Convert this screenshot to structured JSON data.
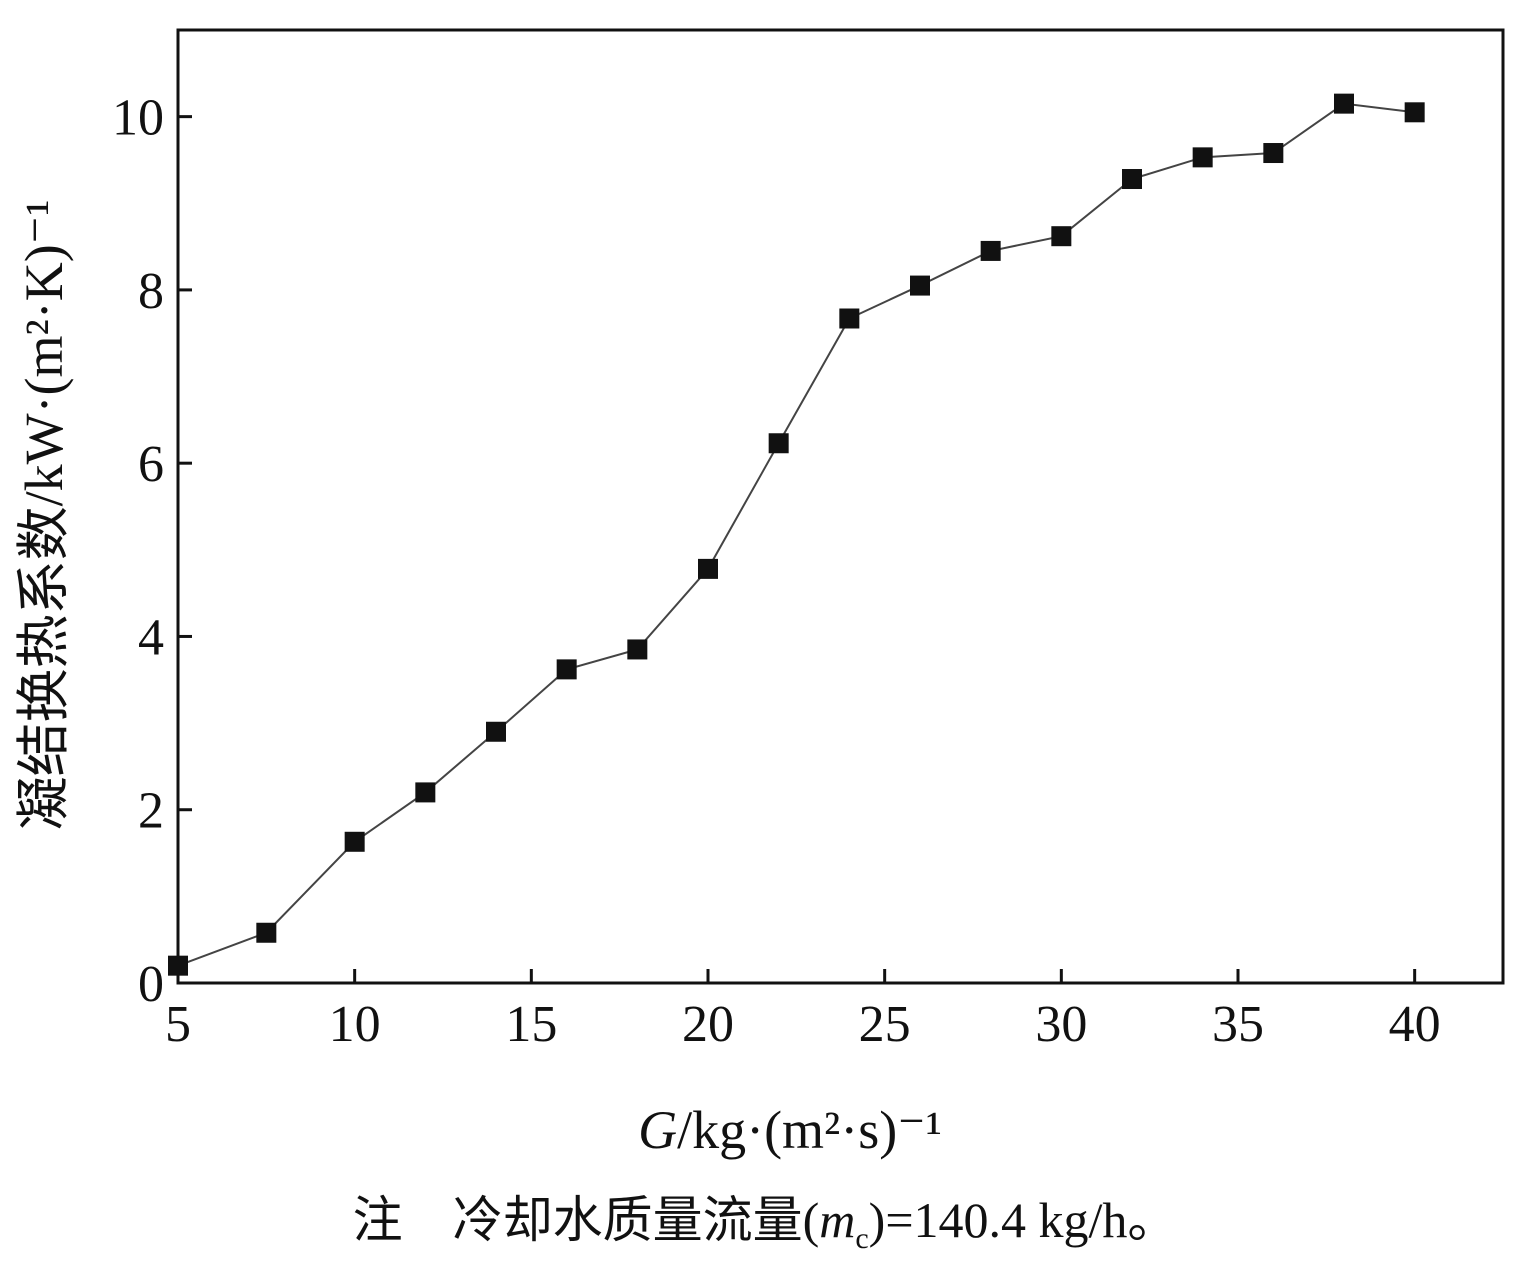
{
  "chart_data": {
    "type": "line",
    "x": [
      5,
      7.5,
      10,
      12,
      14,
      16,
      18,
      20,
      22,
      24,
      26,
      28,
      30,
      32,
      34,
      36,
      38,
      40
    ],
    "series": [
      {
        "values": [
          0.2,
          0.58,
          1.63,
          2.2,
          2.9,
          3.62,
          3.85,
          4.78,
          6.23,
          7.67,
          8.05,
          8.45,
          8.62,
          9.28,
          9.53,
          9.58,
          10.15,
          10.05
        ],
        "marker": "square",
        "color": "#111111"
      }
    ],
    "xlim": [
      5,
      42.5
    ],
    "ylim": [
      0,
      11
    ],
    "xticks": [
      5,
      10,
      15,
      20,
      25,
      30,
      35,
      40
    ],
    "yticks": [
      0,
      2,
      4,
      6,
      8,
      10
    ],
    "xtick_labels": [
      "5",
      "10",
      "15",
      "20",
      "25",
      "30",
      "35",
      "40"
    ],
    "ytick_labels": [
      "0",
      "2",
      "4",
      "6",
      "8",
      "10"
    ],
    "xlabel": {
      "italic": "G",
      "rest": "/kg·(m²·s)⁻¹"
    },
    "ylabel": "凝结换热系数/kW·(m²·K)⁻¹",
    "grid": false
  },
  "note": {
    "prefix": "注　冷却水质量流量(",
    "symbol": "m",
    "subscript": "c",
    "suffix": ")=140.4 kg/h。"
  }
}
